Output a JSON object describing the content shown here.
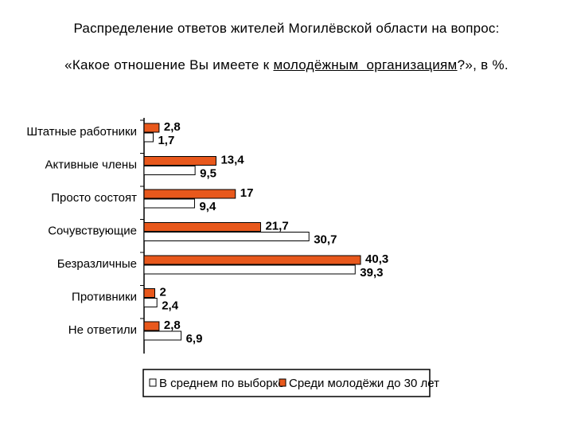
{
  "title": {
    "line1": "Распределение ответов жителей Могилёвской области на вопрос:",
    "line2_before": "«Какое отношение Вы имеете к ",
    "line2_underlined": "молодёжным  организациям",
    "line2_after": "?», в %."
  },
  "colors": {
    "youth": "#e8581c",
    "average": "#ffffff",
    "stroke": "#000000"
  },
  "chart_data": {
    "type": "bar",
    "orientation": "horizontal",
    "categories": [
      "Штатные работники",
      "Активные члены",
      "Просто состоят",
      "Сочувствующие",
      "Безразличные",
      "Противники",
      "Не ответили"
    ],
    "series": [
      {
        "name": "Среди молодёжи до 30 лет",
        "values": [
          2.8,
          13.4,
          17,
          21.7,
          40.3,
          2,
          2.8
        ],
        "labels": [
          "2,8",
          "13,4",
          "17",
          "21,7",
          "40,3",
          "2",
          "2,8"
        ]
      },
      {
        "name": "В среднем по выборке",
        "values": [
          1.7,
          9.5,
          9.4,
          30.7,
          39.3,
          2.4,
          6.9
        ],
        "labels": [
          "1,7",
          "9,5",
          "9,4",
          "30,7",
          "39,3",
          "2,4",
          "6,9"
        ]
      }
    ],
    "legend": [
      "В среднем по выборке",
      "Среди молодёжи до 30 лет"
    ],
    "legend_position": "bottom",
    "grid": false
  }
}
